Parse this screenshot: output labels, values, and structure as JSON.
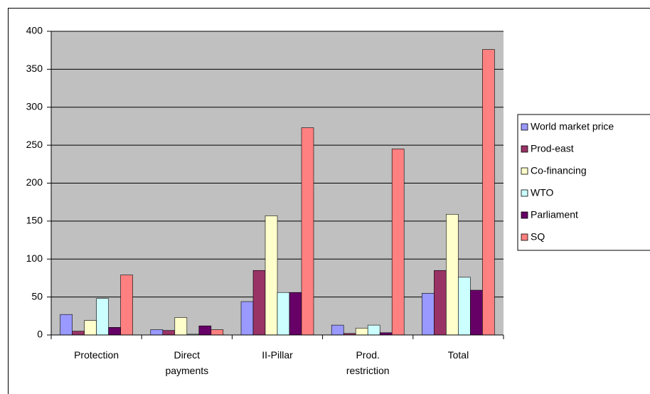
{
  "chart_data": {
    "type": "bar",
    "categories": [
      "Protection",
      "Direct payments",
      "II-Pillar",
      "Prod. restriction",
      "Total"
    ],
    "series": [
      {
        "name": "World market price",
        "color": "#9999ff",
        "values": [
          27,
          7,
          44,
          13,
          55
        ]
      },
      {
        "name": "Prod-east",
        "color": "#993366",
        "values": [
          5,
          6,
          85,
          2,
          85
        ]
      },
      {
        "name": "Co-financing",
        "color": "#ffffcc",
        "values": [
          19,
          23,
          157,
          9,
          159
        ]
      },
      {
        "name": "WTO",
        "color": "#ccffff",
        "values": [
          48,
          1,
          56,
          13,
          76
        ]
      },
      {
        "name": "Parliament",
        "color": "#660066",
        "values": [
          10,
          12,
          56,
          3,
          59
        ]
      },
      {
        "name": "SQ",
        "color": "#ff8080",
        "values": [
          79,
          7,
          273,
          245,
          376
        ]
      }
    ],
    "ylim": [
      0,
      400
    ],
    "yticks": [
      0,
      50,
      100,
      150,
      200,
      250,
      300,
      350,
      400
    ],
    "grid": true,
    "plot_background": "#c0c0c0",
    "legend": "right"
  }
}
